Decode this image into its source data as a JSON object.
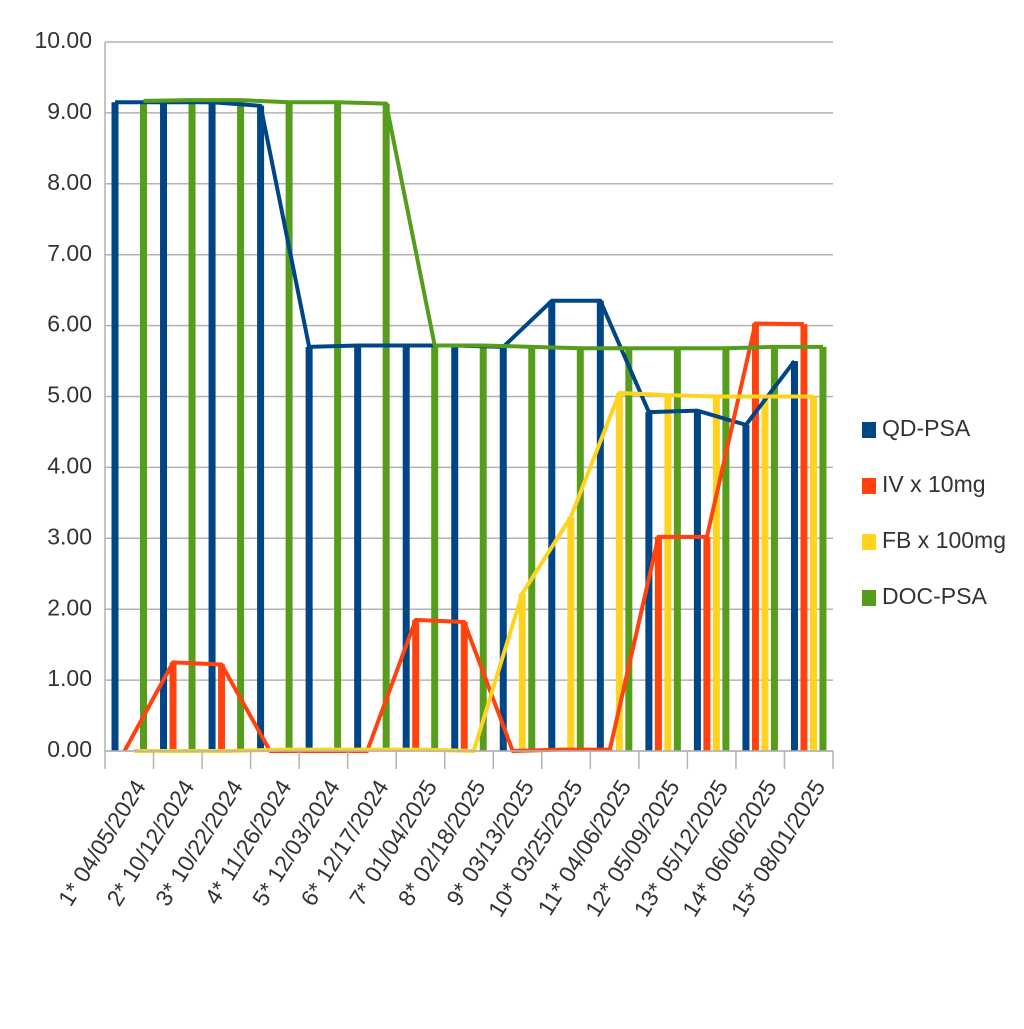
{
  "chart_data": {
    "type": "bar_line",
    "categories": [
      "1* 04/05/2024",
      "2* 10/12/2024",
      "3* 10/22/2024",
      "4* 11/26/2024",
      "5* 12/03/2024",
      "6* 12/17/2024",
      "7* 01/04/2025",
      "8* 02/18/2025",
      "9* 03/13/2025",
      "10* 03/25/2025",
      "11* 04/06/2025",
      "12* 05/09/2025",
      "13* 05/12/2025",
      "14* 06/06/2025",
      "15* 08/01/2025"
    ],
    "series": [
      {
        "name": "QD-PSA",
        "color": "#004586",
        "values": [
          9.15,
          9.15,
          9.15,
          9.1,
          5.7,
          5.72,
          5.72,
          5.72,
          5.7,
          6.35,
          6.35,
          4.78,
          4.8,
          4.6,
          5.5
        ]
      },
      {
        "name": "IV x 10mg",
        "color": "#ff420e",
        "values": [
          0,
          1.25,
          1.22,
          0,
          0,
          0,
          1.85,
          1.82,
          0,
          0.02,
          0.02,
          3.02,
          3.02,
          6.03,
          6.02
        ]
      },
      {
        "name": "FB x 100mg",
        "color": "#ffd320",
        "values": [
          0,
          0,
          0,
          0.02,
          0.02,
          0.02,
          0.02,
          0,
          2.22,
          3.3,
          5.05,
          5.02,
          5.0,
          5.0,
          5.0
        ]
      },
      {
        "name": "DOC-PSA",
        "color": "#579d1c",
        "values": [
          9.17,
          9.18,
          9.18,
          9.15,
          9.15,
          9.13,
          5.72,
          5.72,
          5.7,
          5.68,
          5.68,
          5.68,
          5.68,
          5.7,
          5.7
        ]
      }
    ],
    "ylim": [
      0,
      10
    ],
    "yticks": [
      {
        "value": 0,
        "label": "0.00"
      },
      {
        "value": 1,
        "label": "1.00"
      },
      {
        "value": 2,
        "label": "2.00"
      },
      {
        "value": 3,
        "label": "3.00"
      },
      {
        "value": 4,
        "label": "4.00"
      },
      {
        "value": 5,
        "label": "5.00"
      },
      {
        "value": 6,
        "label": "6.00"
      },
      {
        "value": 7,
        "label": "7.00"
      },
      {
        "value": 8,
        "label": "8.00"
      },
      {
        "value": 9,
        "label": "9.00"
      },
      {
        "value": 10,
        "label": "10.00"
      }
    ],
    "grid": true,
    "legend": "right"
  }
}
